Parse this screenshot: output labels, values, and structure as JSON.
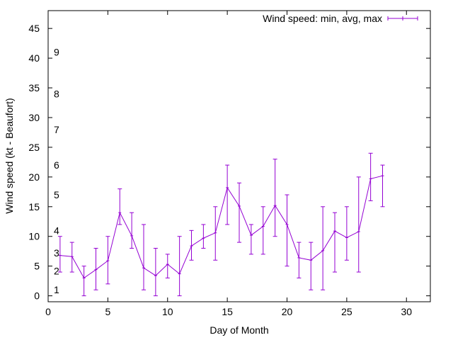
{
  "chart_data": {
    "type": "line",
    "title": "",
    "xlabel": "Day of Month",
    "ylabel": "Wind speed (kt - Beaufort)",
    "xlim": [
      0,
      32
    ],
    "ylim": [
      -1,
      48
    ],
    "xticks": [
      0,
      5,
      10,
      15,
      20,
      25,
      30
    ],
    "yticks": [
      0,
      5,
      10,
      15,
      20,
      25,
      30,
      35,
      40,
      45
    ],
    "grid": false,
    "legend_position": "top-right",
    "series": [
      {
        "name": "Wind speed: min, avg, max",
        "color": "#9400d3",
        "style": "line-with-errorbars",
        "x": [
          1,
          2,
          3,
          4,
          5,
          6,
          7,
          8,
          9,
          10,
          11,
          12,
          13,
          14,
          15,
          16,
          17,
          18,
          19,
          20,
          21,
          22,
          23,
          24,
          25,
          26,
          27,
          28
        ],
        "min": [
          4,
          4,
          0,
          1,
          2,
          12,
          8,
          1,
          0,
          3,
          0,
          6,
          8,
          6,
          12,
          9,
          7,
          7,
          10,
          5,
          3,
          1,
          1,
          4,
          6,
          4,
          16,
          15
        ],
        "avg": [
          6.8,
          6.6,
          3.0,
          4.4,
          5.9,
          14.0,
          10.1,
          4.7,
          3.4,
          5.3,
          3.7,
          8.4,
          9.7,
          10.6,
          18.2,
          15.1,
          10.2,
          11.7,
          15.2,
          12.0,
          6.4,
          6.0,
          7.6,
          10.9,
          9.8,
          10.8,
          19.7,
          20.2
        ],
        "max": [
          10,
          9,
          5,
          8,
          10,
          18,
          14,
          12,
          8,
          7,
          10,
          11,
          12,
          15,
          22,
          19,
          12,
          15,
          23,
          17,
          9,
          9,
          15,
          14,
          15,
          20,
          24,
          22
        ]
      }
    ],
    "annotations": [
      {
        "text": "1",
        "y": 1
      },
      {
        "text": "2",
        "y": 4.2
      },
      {
        "text": "3",
        "y": 7.2
      },
      {
        "text": "4",
        "y": 11
      },
      {
        "text": "5",
        "y": 17
      },
      {
        "text": "6",
        "y": 22
      },
      {
        "text": "7",
        "y": 28
      },
      {
        "text": "8",
        "y": 34
      },
      {
        "text": "9",
        "y": 41
      }
    ]
  }
}
